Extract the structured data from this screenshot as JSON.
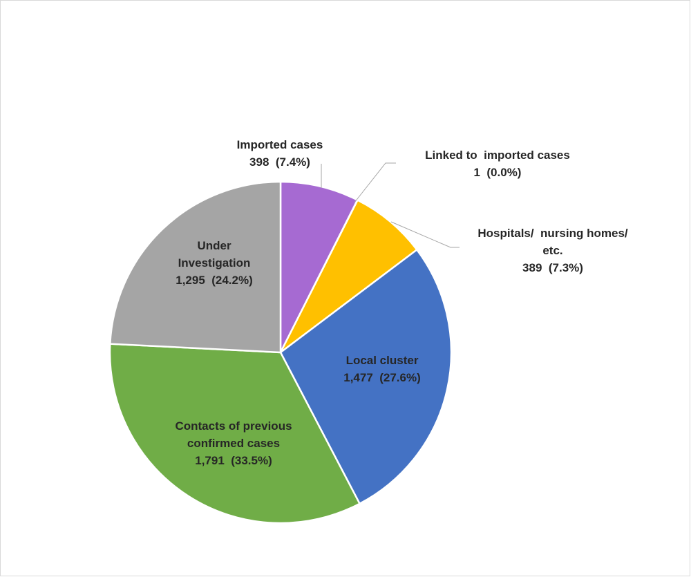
{
  "chart_data": {
    "type": "pie",
    "title": "",
    "slices": [
      {
        "label_lines": [
          "Imported cases"
        ],
        "value_text": "398  (7.4%)",
        "value": 398,
        "percent": 7.4,
        "color": "#a66ad2"
      },
      {
        "label_lines": [
          "Linked to  imported cases"
        ],
        "value_text": "1  (0.0%)",
        "value": 1,
        "percent": 0.0,
        "color": "#a6a6a6"
      },
      {
        "label_lines": [
          "Hospitals/  nursing homes/",
          "etc."
        ],
        "value_text": "389  (7.3%)",
        "value": 389,
        "percent": 7.3,
        "color": "#ffc000"
      },
      {
        "label_lines": [
          "Local cluster"
        ],
        "value_text": "1,477  (27.6%)",
        "value": 1477,
        "percent": 27.6,
        "color": "#4472c4"
      },
      {
        "label_lines": [
          "Contacts of previous",
          "confirmed cases"
        ],
        "value_text": "1,791  (33.5%)",
        "value": 1791,
        "percent": 33.5,
        "color": "#70ad47"
      },
      {
        "label_lines": [
          "Under",
          "Investigation"
        ],
        "value_text": "1,295  (24.2%)",
        "value": 1295,
        "percent": 24.2,
        "color": "#a5a5a5"
      }
    ],
    "start_angle": "12 o'clock",
    "direction": "clockwise",
    "legend": "none"
  }
}
